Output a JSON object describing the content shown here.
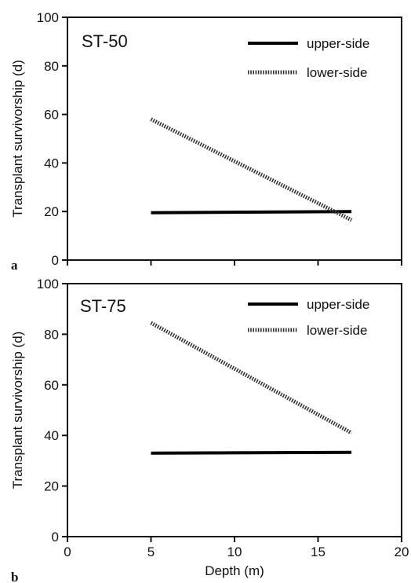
{
  "chart_data": [
    {
      "type": "line",
      "panel_letter": "a",
      "title": "ST-50",
      "xlabel": "",
      "ylabel": "Transplant survivorship (d)",
      "xlim": [
        0,
        20
      ],
      "ylim": [
        0,
        100
      ],
      "x_ticks": [
        0,
        5,
        10,
        15,
        20
      ],
      "y_ticks": [
        0,
        20,
        40,
        60,
        80,
        100
      ],
      "show_x_tick_labels": false,
      "grid": false,
      "legend_position": "top-right",
      "series": [
        {
          "name": "upper-side",
          "style": "solid",
          "x": [
            5,
            17
          ],
          "y": [
            19.5,
            20
          ]
        },
        {
          "name": "lower-side",
          "style": "dotted",
          "x": [
            5,
            17
          ],
          "y": [
            58,
            16.5
          ]
        }
      ]
    },
    {
      "type": "line",
      "panel_letter": "b",
      "title": "ST-75",
      "xlabel": "Depth (m)",
      "ylabel": "Transplant survivorship (d)",
      "xlim": [
        0,
        20
      ],
      "ylim": [
        0,
        100
      ],
      "x_ticks": [
        0,
        5,
        10,
        15,
        20
      ],
      "y_ticks": [
        0,
        20,
        40,
        60,
        80,
        100
      ],
      "show_x_tick_labels": true,
      "grid": false,
      "legend_position": "top-right",
      "series": [
        {
          "name": "upper-side",
          "style": "solid",
          "x": [
            5,
            17
          ],
          "y": [
            33,
            33.3
          ]
        },
        {
          "name": "lower-side",
          "style": "dotted",
          "x": [
            5,
            17
          ],
          "y": [
            84.5,
            41
          ]
        }
      ]
    }
  ]
}
